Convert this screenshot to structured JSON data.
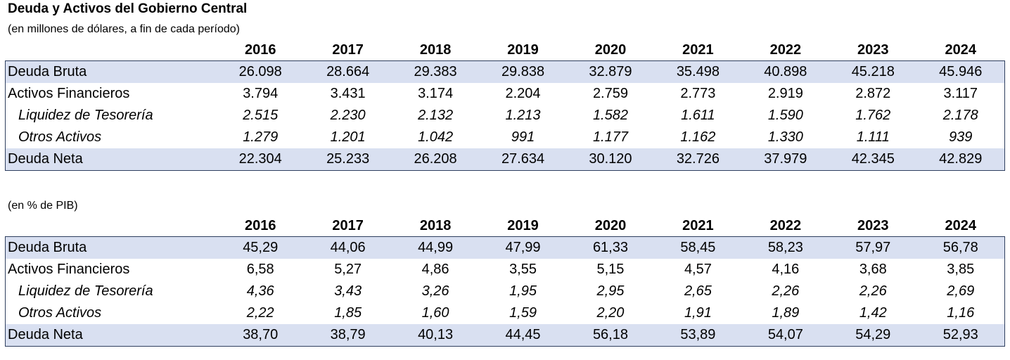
{
  "title": "Deuda y Activos del Gobierno Central",
  "subtitle_usd": "(en millones de dólares, a fin de cada período)",
  "subtitle_pib": "(en % de PIB)",
  "years": [
    "2016",
    "2017",
    "2018",
    "2019",
    "2020",
    "2021",
    "2022",
    "2023",
    "2024"
  ],
  "table_usd": [
    {
      "label": "Deuda Bruta",
      "values": [
        "26.098",
        "28.664",
        "29.383",
        "29.838",
        "32.879",
        "35.498",
        "40.898",
        "45.218",
        "45.946"
      ]
    },
    {
      "label": "Activos Financieros",
      "values": [
        "3.794",
        "3.431",
        "3.174",
        "2.204",
        "2.759",
        "2.773",
        "2.919",
        "2.872",
        "3.117"
      ]
    },
    {
      "label": "Liquidez de Tesorería",
      "values": [
        "2.515",
        "2.230",
        "2.132",
        "1.213",
        "1.582",
        "1.611",
        "1.590",
        "1.762",
        "2.178"
      ]
    },
    {
      "label": "Otros Activos",
      "values": [
        "1.279",
        "1.201",
        "1.042",
        "991",
        "1.177",
        "1.162",
        "1.330",
        "1.111",
        "939"
      ]
    },
    {
      "label": "Deuda Neta",
      "values": [
        "22.304",
        "25.233",
        "26.208",
        "27.634",
        "30.120",
        "32.726",
        "37.979",
        "42.345",
        "42.829"
      ]
    }
  ],
  "table_pib": [
    {
      "label": "Deuda Bruta",
      "values": [
        "45,29",
        "44,06",
        "44,99",
        "47,99",
        "61,33",
        "58,45",
        "58,23",
        "57,97",
        "56,78"
      ]
    },
    {
      "label": "Activos Financieros",
      "values": [
        "6,58",
        "5,27",
        "4,86",
        "3,55",
        "5,15",
        "4,57",
        "4,16",
        "3,68",
        "3,85"
      ]
    },
    {
      "label": "Liquidez de Tesorería",
      "values": [
        "4,36",
        "3,43",
        "3,26",
        "1,95",
        "2,95",
        "2,65",
        "2,26",
        "2,26",
        "2,69"
      ]
    },
    {
      "label": "Otros Activos",
      "values": [
        "2,22",
        "1,85",
        "1,60",
        "1,59",
        "2,20",
        "1,91",
        "1,89",
        "1,42",
        "1,16"
      ]
    },
    {
      "label": "Deuda Neta",
      "values": [
        "38,70",
        "38,79",
        "40,13",
        "44,45",
        "56,18",
        "53,89",
        "54,07",
        "54,29",
        "52,93"
      ]
    }
  ]
}
